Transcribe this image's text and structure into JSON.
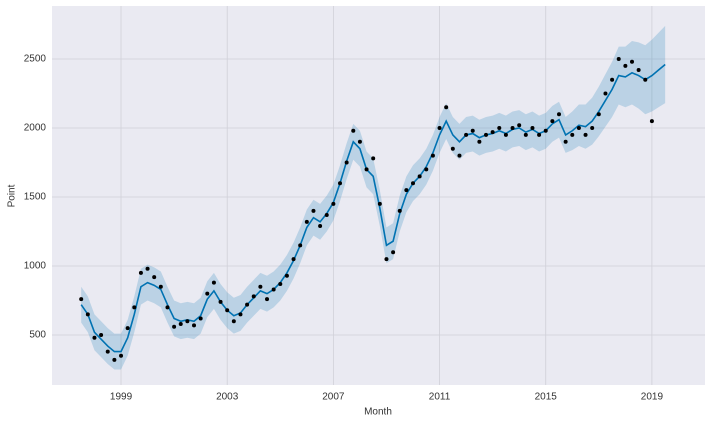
{
  "chart_data": {
    "type": "forecast",
    "xlabel": "Month",
    "ylabel": "Point",
    "xlim": [
      1996.4,
      2021.0
    ],
    "ylim": [
      138,
      2884
    ],
    "xticks": [
      1999,
      2003,
      2007,
      2011,
      2015,
      2019
    ],
    "yticks": [
      500,
      1000,
      1500,
      2000,
      2500
    ],
    "grid": true,
    "observed_color": "#000000",
    "forecast_color": "#0072b2",
    "x": [
      1997.5,
      1997.75,
      1998,
      1998.25,
      1998.5,
      1998.75,
      1999,
      1999.25,
      1999.5,
      1999.75,
      2000,
      2000.25,
      2000.5,
      2000.75,
      2001,
      2001.25,
      2001.5,
      2001.75,
      2002,
      2002.25,
      2002.5,
      2002.75,
      2003,
      2003.25,
      2003.5,
      2003.75,
      2004,
      2004.25,
      2004.5,
      2004.75,
      2005,
      2005.25,
      2005.5,
      2005.75,
      2006,
      2006.25,
      2006.5,
      2006.75,
      2007,
      2007.25,
      2007.5,
      2007.75,
      2008,
      2008.25,
      2008.5,
      2008.75,
      2009,
      2009.25,
      2009.5,
      2009.75,
      2010,
      2010.25,
      2010.5,
      2010.75,
      2011,
      2011.25,
      2011.5,
      2011.75,
      2012,
      2012.25,
      2012.5,
      2012.75,
      2013,
      2013.25,
      2013.5,
      2013.75,
      2014,
      2014.25,
      2014.5,
      2014.75,
      2015,
      2015.25,
      2015.5,
      2015.75,
      2016,
      2016.25,
      2016.5,
      2016.75,
      2017,
      2017.25,
      2017.5,
      2017.75,
      2018,
      2018.25,
      2018.5,
      2018.75,
      2019,
      2019.25,
      2019.5
    ],
    "observed": [
      760,
      650,
      480,
      500,
      380,
      320,
      350,
      550,
      700,
      950,
      980,
      920,
      850,
      700,
      560,
      580,
      600,
      570,
      620,
      800,
      880,
      740,
      680,
      600,
      650,
      720,
      780,
      850,
      760,
      830,
      870,
      930,
      1050,
      1150,
      1320,
      1400,
      1290,
      1370,
      1450,
      1600,
      1750,
      1980,
      1900,
      1700,
      1780,
      1450,
      1050,
      1100,
      1400,
      1550,
      1600,
      1650,
      1700,
      1800,
      2000,
      2150,
      1850,
      1800,
      1950,
      1980,
      1900,
      1950,
      1970,
      2000,
      1950,
      2000,
      2020,
      1950,
      2000,
      1950,
      1980,
      2050,
      2100,
      1900,
      1950,
      2000,
      1950,
      2000,
      2100,
      2250,
      2350,
      2500,
      2450,
      2480,
      2420,
      2350,
      2050,
      null,
      null
    ],
    "forecast": [
      720,
      650,
      520,
      470,
      420,
      380,
      380,
      480,
      650,
      850,
      880,
      860,
      830,
      720,
      620,
      600,
      610,
      600,
      640,
      760,
      820,
      740,
      680,
      640,
      660,
      720,
      770,
      820,
      800,
      830,
      880,
      950,
      1040,
      1150,
      1280,
      1350,
      1320,
      1380,
      1460,
      1600,
      1760,
      1900,
      1850,
      1700,
      1650,
      1420,
      1150,
      1180,
      1380,
      1520,
      1600,
      1650,
      1720,
      1820,
      1950,
      2050,
      1950,
      1900,
      1950,
      1960,
      1930,
      1950,
      1960,
      1980,
      1960,
      1990,
      2000,
      1970,
      1990,
      1960,
      1980,
      2030,
      2060,
      1950,
      1980,
      2020,
      2010,
      2050,
      2120,
      2200,
      2280,
      2380,
      2370,
      2400,
      2380,
      2350,
      2380,
      2420,
      2460
    ],
    "forecast_error": [
      130,
      130,
      130,
      130,
      130,
      130,
      130,
      130,
      130,
      130,
      130,
      130,
      130,
      130,
      130,
      130,
      130,
      130,
      130,
      130,
      130,
      130,
      130,
      130,
      130,
      130,
      130,
      130,
      130,
      130,
      130,
      130,
      130,
      130,
      130,
      130,
      130,
      130,
      130,
      130,
      130,
      130,
      130,
      130,
      130,
      130,
      130,
      130,
      130,
      130,
      130,
      130,
      130,
      130,
      130,
      130,
      130,
      130,
      130,
      130,
      130,
      130,
      130,
      130,
      130,
      130,
      130,
      130,
      130,
      130,
      130,
      130,
      130,
      130,
      140,
      150,
      160,
      170,
      180,
      190,
      200,
      210,
      220,
      230,
      240,
      250,
      260,
      270,
      280
    ]
  }
}
